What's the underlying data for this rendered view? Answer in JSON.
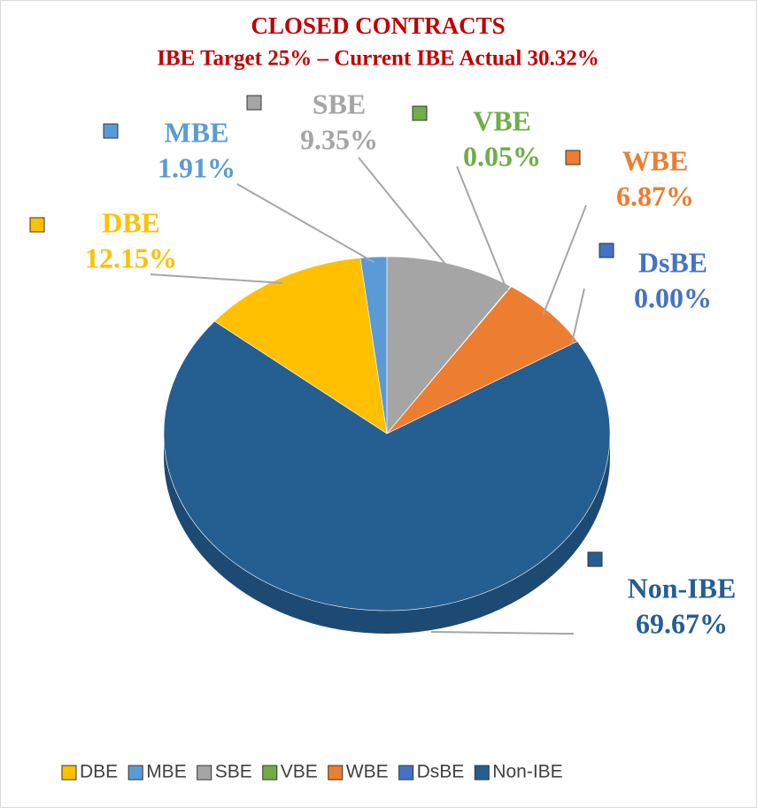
{
  "chart_data": {
    "type": "pie",
    "title": "CLOSED CONTRACTS",
    "subtitle": "IBE Target 25% – Current IBE Actual 30.32%",
    "categories": [
      "DBE",
      "MBE",
      "SBE",
      "VBE",
      "WBE",
      "DsBE",
      "Non-IBE"
    ],
    "values": [
      12.15,
      1.91,
      9.35,
      0.05,
      6.87,
      0,
      69.67
    ],
    "value_labels": [
      "12.15%",
      "1.91%",
      "9.35%",
      "0.05%",
      "6.87%",
      "0.00%",
      "69.67%"
    ],
    "colors": [
      "#ffc000",
      "#5b9bd5",
      "#a5a5a5",
      "#70ad47",
      "#ed7d31",
      "#4472c4",
      "#255e91"
    ],
    "legend": "bottom"
  }
}
